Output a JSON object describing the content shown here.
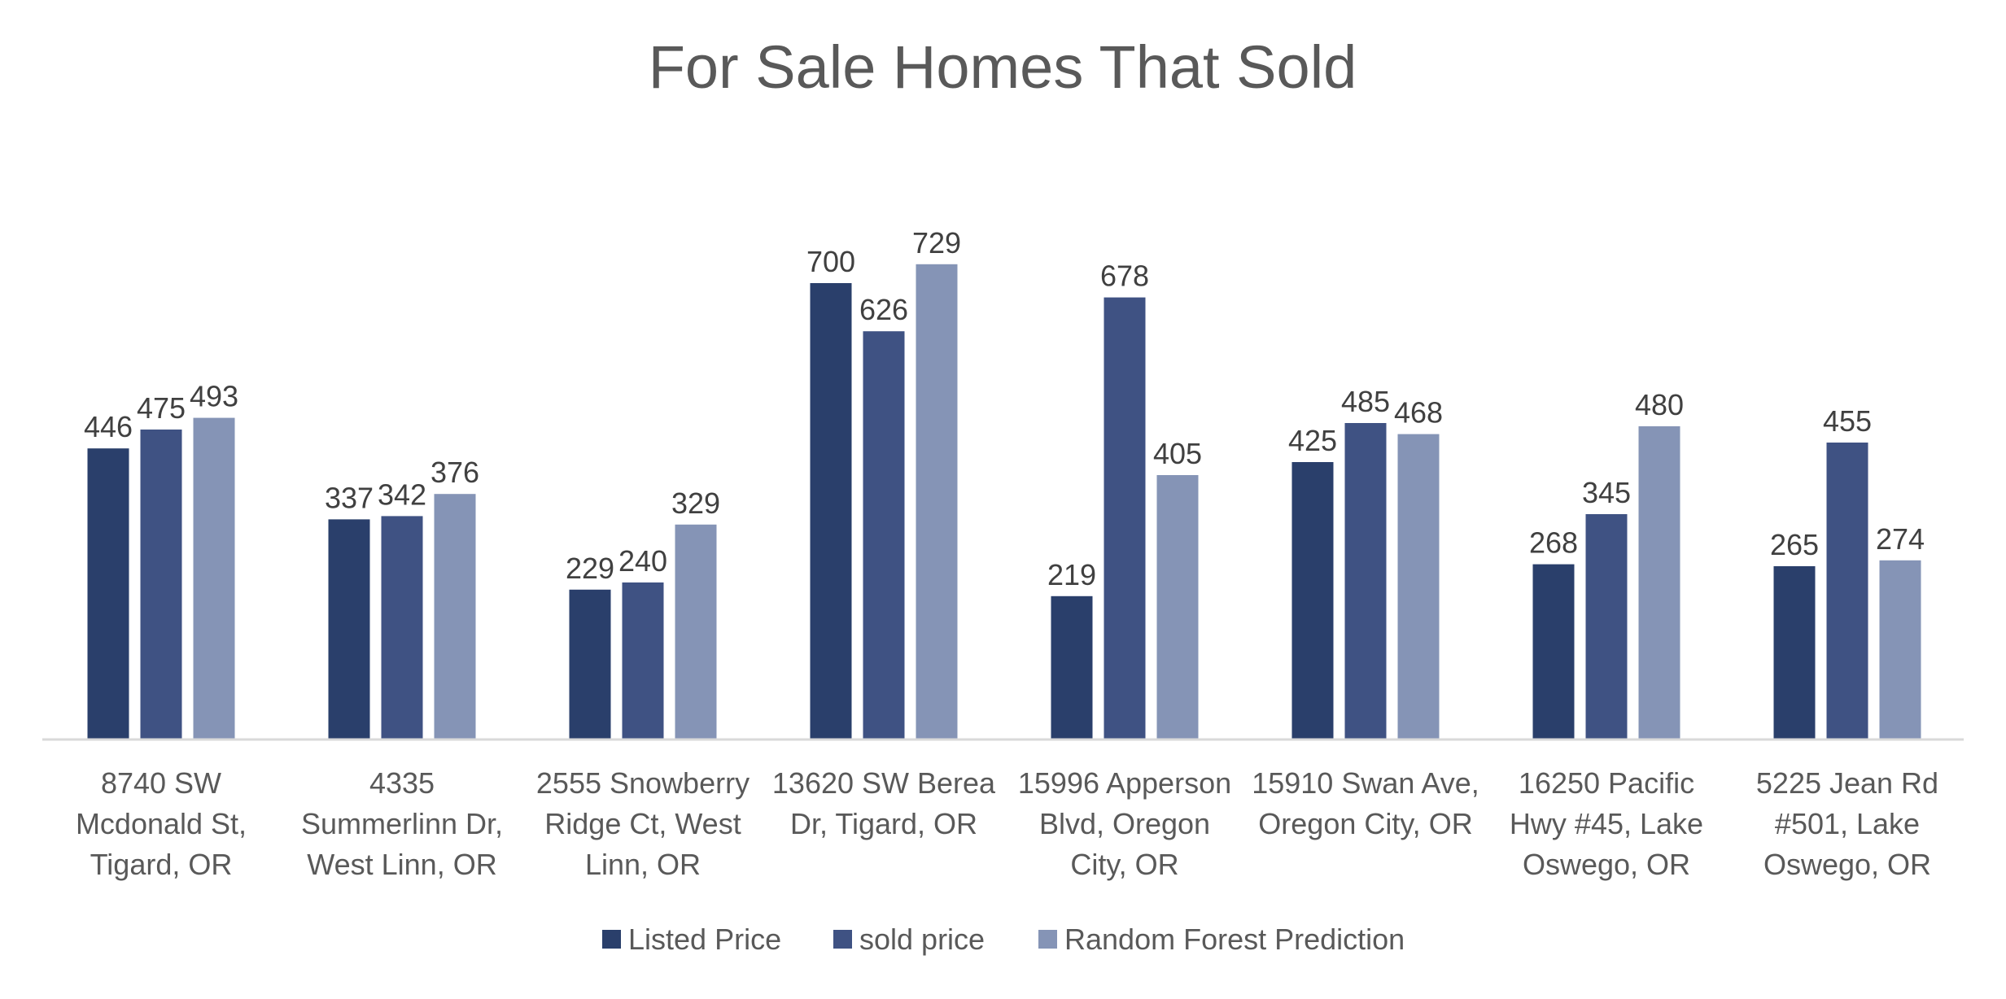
{
  "chart_data": {
    "type": "bar",
    "title": "For Sale Homes That Sold",
    "xlabel": "",
    "ylabel": "",
    "ylim": [
      0,
      760
    ],
    "grid": false,
    "legend_position": "bottom",
    "categories": [
      [
        "8740 SW",
        "Mcdonald St,",
        "Tigard, OR"
      ],
      [
        "4335",
        "Summerlinn Dr,",
        "West Linn, OR"
      ],
      [
        "2555 Snowberry",
        "Ridge Ct, West",
        "Linn, OR"
      ],
      [
        "13620 SW Berea",
        "Dr, Tigard, OR"
      ],
      [
        "15996 Apperson",
        "Blvd, Oregon",
        "City, OR"
      ],
      [
        "15910 Swan Ave,",
        "Oregon City, OR"
      ],
      [
        "16250 Pacific",
        "Hwy #45, Lake",
        "Oswego, OR"
      ],
      [
        "5225 Jean Rd",
        "#501, Lake",
        "Oswego, OR"
      ]
    ],
    "series": [
      {
        "name": "Listed Price",
        "color": "#2a3f6b",
        "values": [
          446,
          337,
          229,
          700,
          219,
          425,
          268,
          265
        ]
      },
      {
        "name": "sold price",
        "color": "#3f5283",
        "values": [
          475,
          342,
          240,
          626,
          678,
          485,
          345,
          455
        ]
      },
      {
        "name": "Random Forest Prediction",
        "color": "#8594b6",
        "values": [
          493,
          376,
          329,
          729,
          405,
          468,
          480,
          274
        ]
      }
    ]
  }
}
